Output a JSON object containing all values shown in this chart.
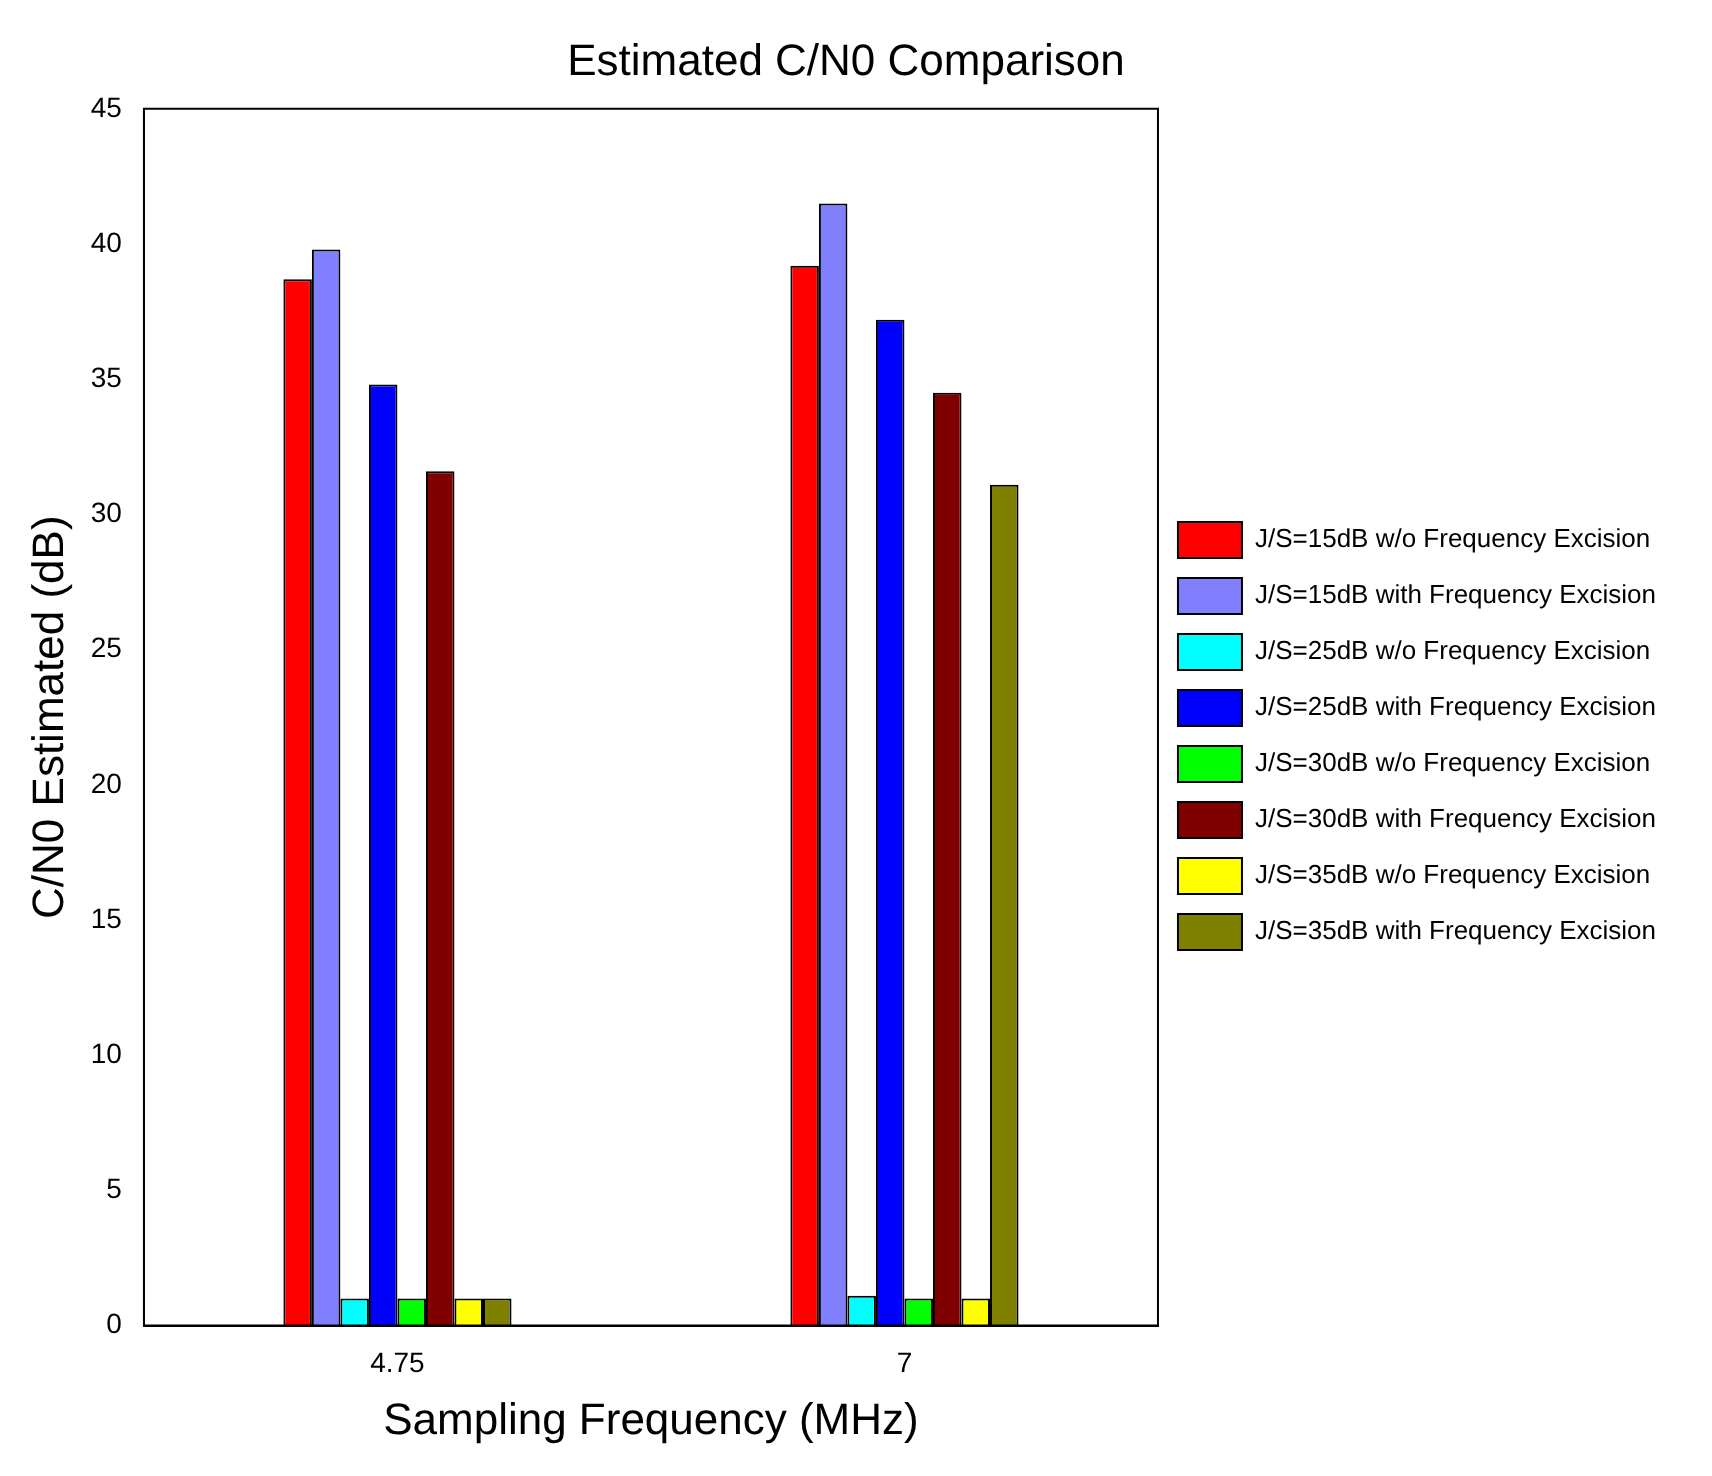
{
  "chart_data": {
    "type": "bar",
    "title": "Estimated C/N0 Comparison",
    "xlabel": "Sampling Frequency (MHz)",
    "ylabel": "C/N0 Estimated (dB)",
    "categories": [
      "4.75",
      "7"
    ],
    "ylim": [
      0,
      45
    ],
    "yticks": [
      0,
      5,
      10,
      15,
      20,
      25,
      30,
      35,
      40,
      45
    ],
    "grid": false,
    "legend": "right",
    "series": [
      {
        "name": "J/S=15dB w/o Frequency Excision",
        "color": "#ff0000",
        "values": [
          38.7,
          39.2
        ]
      },
      {
        "name": "J/S=15dB with Frequency Excision",
        "color": "#8080ff",
        "values": [
          39.8,
          41.5
        ]
      },
      {
        "name": "J/S=25dB w/o Frequency Excision",
        "color": "#00ffff",
        "values": [
          1.0,
          1.1
        ]
      },
      {
        "name": "J/S=25dB with Frequency Excision",
        "color": "#0000ff",
        "values": [
          34.8,
          37.2
        ]
      },
      {
        "name": "J/S=30dB w/o Frequency Excision",
        "color": "#00ff00",
        "values": [
          1.0,
          1.0
        ]
      },
      {
        "name": "J/S=30dB with Frequency Excision",
        "color": "#800000",
        "values": [
          31.6,
          34.5
        ]
      },
      {
        "name": "J/S=35dB w/o Frequency Excision",
        "color": "#ffff00",
        "values": [
          1.0,
          1.0
        ]
      },
      {
        "name": "J/S=35dB with Frequency Excision",
        "color": "#808000",
        "values": [
          1.0,
          31.1
        ]
      }
    ]
  }
}
